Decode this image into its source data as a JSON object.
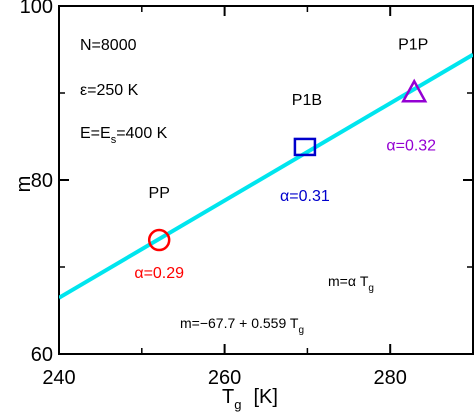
{
  "chart_data": {
    "type": "scatter",
    "xlabel": "T",
    "xlabel_sub": "g",
    "xlabel_unit": "[K]",
    "ylabel": "m",
    "xlim": [
      240,
      290
    ],
    "ylim": [
      60,
      100
    ],
    "xticks": [
      240,
      260,
      280
    ],
    "yticks": [
      60,
      80,
      100
    ],
    "grid": false,
    "params": {
      "n": "N=8000",
      "eps": "ε=250 K",
      "e_pre": "E=E",
      "e_sub": "s",
      "e_post": "=400 K"
    },
    "fit": {
      "intercept": -67.7,
      "slope": 0.559,
      "color": "#00e5ee",
      "label_pre": "m=−67.7 + 0.559 T",
      "label_sub": "g",
      "model_pre": "m=α T",
      "model_sub": "g"
    },
    "points": [
      {
        "name": "PP",
        "x": 252.1,
        "y": 73.1,
        "marker": "circle",
        "color": "#ff0000",
        "alpha_label": "α=0.29"
      },
      {
        "name": "P1B",
        "x": 269.7,
        "y": 83.8,
        "marker": "square",
        "color": "#0000cc",
        "alpha_label": "α=0.31"
      },
      {
        "name": "P1P",
        "x": 282.9,
        "y": 90.2,
        "marker": "triangle",
        "color": "#9400d3",
        "alpha_label": "α=0.32"
      }
    ]
  }
}
